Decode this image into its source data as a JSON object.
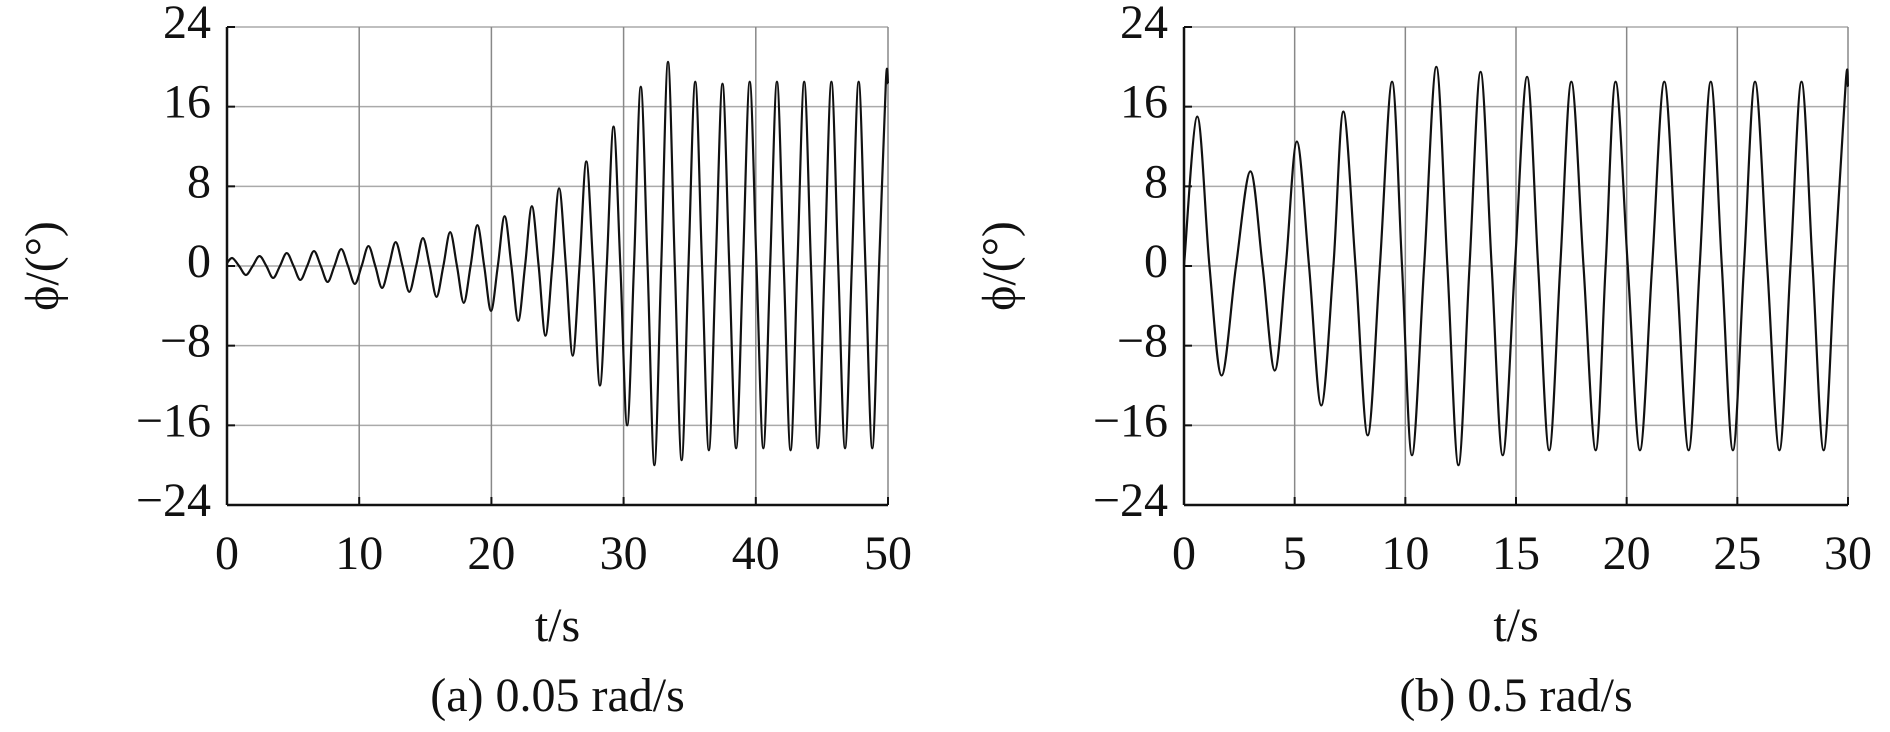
{
  "chart_data": [
    {
      "type": "line",
      "caption": "(a) 0.05 rad/s",
      "xlabel": "t/s",
      "ylabel": "ϕ/(°)",
      "color": "#111111",
      "grid": true,
      "xlim": [
        0,
        50
      ],
      "xticks": [
        0,
        10,
        20,
        30,
        40,
        50
      ],
      "ylim": [
        -24,
        24
      ],
      "yticks": [
        {
          "value": -24,
          "label": "−24"
        },
        {
          "value": -16,
          "label": "−16"
        },
        {
          "value": -8,
          "label": "−8"
        },
        0,
        8,
        16,
        24
      ],
      "x": [
        0,
        0.4,
        0.915,
        1.43,
        1.945,
        2.46,
        2.975,
        3.49,
        4.005,
        4.52,
        5.035,
        5.55,
        6.065,
        6.58,
        7.095,
        7.61,
        8.125,
        8.64,
        9.155,
        9.67,
        10.185,
        10.7,
        11.215,
        11.73,
        12.245,
        12.76,
        13.275,
        13.79,
        14.305,
        14.82,
        15.335,
        15.85,
        16.365,
        16.88,
        17.395,
        17.91,
        18.425,
        18.94,
        19.455,
        19.97,
        20.485,
        21.0,
        21.515,
        22.03,
        22.545,
        23.06,
        23.575,
        24.09,
        24.605,
        25.12,
        25.635,
        26.15,
        26.665,
        27.18,
        27.695,
        28.21,
        28.725,
        29.24,
        29.755,
        30.27,
        30.785,
        31.3,
        31.815,
        32.33,
        32.845,
        33.36,
        33.875,
        34.39,
        34.905,
        35.42,
        35.935,
        36.45,
        36.965,
        37.48,
        37.995,
        38.51,
        39.025,
        39.54,
        40.055,
        40.57,
        41.085,
        41.6,
        42.115,
        42.63,
        43.145,
        43.66,
        44.175,
        44.69,
        45.205,
        45.72,
        46.235,
        46.75,
        47.265,
        47.78,
        48.295,
        48.81,
        49.325,
        49.84,
        50
      ],
      "values": [
        0.3,
        0.8,
        0,
        -0.9,
        0,
        1.0,
        0,
        -1.2,
        0,
        1.3,
        0,
        -1.4,
        0,
        1.5,
        0,
        -1.6,
        0,
        1.7,
        0,
        -1.8,
        0,
        2.0,
        0,
        -2.2,
        0,
        2.4,
        0,
        -2.6,
        0,
        2.8,
        0,
        -3.1,
        0,
        3.4,
        0,
        -3.7,
        0,
        4.1,
        0,
        -4.5,
        0,
        5.0,
        0,
        -5.5,
        0,
        6.0,
        0,
        -7,
        0,
        7.8,
        0,
        -9,
        0,
        10.5,
        0,
        -12,
        0,
        14,
        0,
        -16,
        0,
        18,
        0,
        -20,
        0,
        20.5,
        0,
        -19.5,
        0,
        18.5,
        0,
        -18.5,
        0,
        18.3,
        0,
        -18.3,
        0,
        18.5,
        0,
        -18.3,
        0,
        18.5,
        0,
        -18.5,
        0,
        18.5,
        0,
        -18.3,
        0,
        18.5,
        0,
        -18.3,
        0,
        18.5,
        0,
        -18.3,
        0,
        18.5,
        18.3
      ]
    },
    {
      "type": "line",
      "caption": "(b) 0.5 rad/s",
      "xlabel": "t/s",
      "ylabel": "ϕ/(°)",
      "color": "#111111",
      "grid": true,
      "xlim": [
        0,
        30
      ],
      "xticks": [
        0,
        5,
        10,
        15,
        20,
        25,
        30
      ],
      "ylim": [
        -24,
        24
      ],
      "yticks": [
        {
          "value": -24,
          "label": "−24"
        },
        {
          "value": -16,
          "label": "−16"
        },
        {
          "value": -8,
          "label": "−8"
        },
        0,
        8,
        16,
        24
      ],
      "x": [
        0,
        0.6,
        1.15,
        1.7,
        2.35,
        3.0,
        3.55,
        4.1,
        4.6,
        5.1,
        5.65,
        6.2,
        6.75,
        7.2,
        7.75,
        8.3,
        8.85,
        9.4,
        9.85,
        10.3,
        10.85,
        11.4,
        11.9,
        12.4,
        12.9,
        13.4,
        13.9,
        14.4,
        14.95,
        15.5,
        16.0,
        16.5,
        17.0,
        17.5,
        18.05,
        18.6,
        19.05,
        19.5,
        20.05,
        20.6,
        21.15,
        21.7,
        22.25,
        22.8,
        23.3,
        23.8,
        24.3,
        24.8,
        25.3,
        25.8,
        26.35,
        26.9,
        27.4,
        27.9,
        28.4,
        28.9,
        29.4,
        29.9,
        30
      ],
      "values": [
        0,
        15,
        0,
        -11,
        0,
        9.5,
        0,
        -10.5,
        0,
        12.5,
        0,
        -14,
        0,
        15.5,
        0,
        -17,
        0,
        18.5,
        0,
        -19,
        0,
        20,
        0,
        -20,
        0,
        19.5,
        0,
        -19,
        0,
        19,
        0,
        -18.5,
        0,
        18.5,
        0,
        -18.5,
        0,
        18.5,
        0,
        -18.5,
        0,
        18.5,
        0,
        -18.5,
        0,
        18.5,
        0,
        -18.5,
        0,
        18.5,
        0,
        -18.5,
        0,
        18.5,
        0,
        -18.5,
        0,
        18.5,
        18
      ]
    }
  ]
}
